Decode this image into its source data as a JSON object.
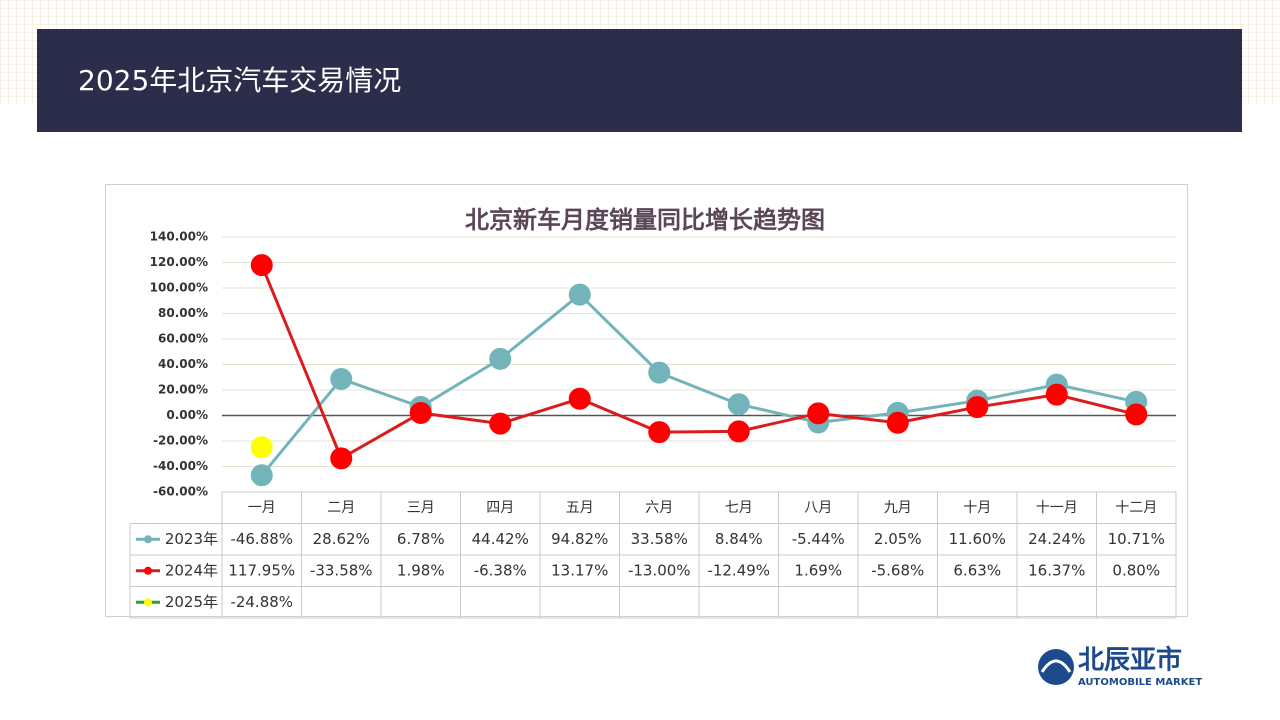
{
  "header": {
    "title": "2025年北京汽车交易情况"
  },
  "logo": {
    "name": "北辰亚市",
    "subtitle": "AUTOMOBILE MARKET"
  },
  "chart_data": {
    "type": "line",
    "title": "北京新车月度销量同比增长趋势图",
    "categories": [
      "一月",
      "二月",
      "三月",
      "四月",
      "五月",
      "六月",
      "七月",
      "八月",
      "九月",
      "十月",
      "十一月",
      "十二月"
    ],
    "series": [
      {
        "name": "2023年",
        "color": "#72b4b9",
        "marker_color": "#72b4b9",
        "values": [
          -46.88,
          28.62,
          6.78,
          44.42,
          94.82,
          33.58,
          8.84,
          -5.44,
          2.05,
          11.6,
          24.24,
          10.71
        ],
        "value_labels": [
          "-46.88%",
          "28.62%",
          "6.78%",
          "44.42%",
          "94.82%",
          "33.58%",
          "8.84%",
          "-5.44%",
          "2.05%",
          "11.60%",
          "24.24%",
          "10.71%"
        ]
      },
      {
        "name": "2024年",
        "color": "#dc1c1c",
        "marker_color": "#ff0000",
        "values": [
          117.95,
          -33.58,
          1.98,
          -6.38,
          13.17,
          -13.0,
          -12.49,
          1.69,
          -5.68,
          6.63,
          16.37,
          0.8
        ],
        "value_labels": [
          "117.95%",
          "-33.58%",
          "1.98%",
          "-6.38%",
          "13.17%",
          "-13.00%",
          "-12.49%",
          "1.69%",
          "-5.68%",
          "6.63%",
          "16.37%",
          "0.80%"
        ]
      },
      {
        "name": "2025年",
        "color": "#2e9e3e",
        "marker_color": "#ffff00",
        "values": [
          -24.88,
          null,
          null,
          null,
          null,
          null,
          null,
          null,
          null,
          null,
          null,
          null
        ],
        "value_labels": [
          "-24.88%",
          null,
          null,
          null,
          null,
          null,
          null,
          null,
          null,
          null,
          null,
          null
        ]
      }
    ],
    "ylim": [
      -60,
      140
    ],
    "yticks": [
      {
        "value": -60,
        "label": "-60.00%"
      },
      {
        "value": -40,
        "label": "-40.00%"
      },
      {
        "value": -20,
        "label": "-20.00%"
      },
      {
        "value": 0,
        "label": "0.00%"
      },
      {
        "value": 20,
        "label": "20.00%"
      },
      {
        "value": 40,
        "label": "40.00%"
      },
      {
        "value": 60,
        "label": "60.00%"
      },
      {
        "value": 80,
        "label": "80.00%"
      },
      {
        "value": 100,
        "label": "100.00%"
      },
      {
        "value": 120,
        "label": "120.00%"
      },
      {
        "value": 140,
        "label": "140.00%"
      }
    ],
    "grid": true
  }
}
